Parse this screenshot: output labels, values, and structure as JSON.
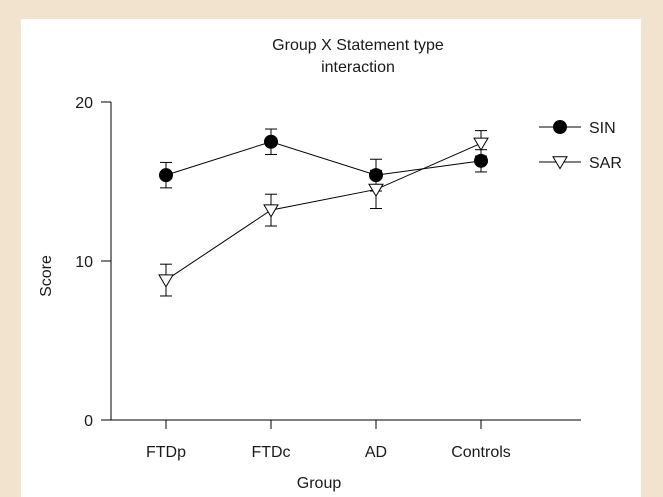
{
  "chart_data": {
    "type": "line",
    "title": "Group X  Statement type",
    "subtitle": "interaction",
    "xlabel": "Group",
    "ylabel": "Score",
    "categories": [
      "FTDp",
      "FTDc",
      "AD",
      "Controls"
    ],
    "ylim": [
      0,
      20
    ],
    "yticks": [
      0,
      10,
      20
    ],
    "grid": false,
    "legend": "top-right",
    "series": [
      {
        "name": "SIN",
        "marker": "filled-circle",
        "color": "#000000",
        "values": [
          15.4,
          17.5,
          15.4,
          16.3
        ],
        "errors": [
          0.8,
          0.8,
          1.0,
          0.7
        ]
      },
      {
        "name": "SAR",
        "marker": "open-triangle-down",
        "color": "#000000",
        "values": [
          8.8,
          13.2,
          14.5,
          17.4
        ],
        "errors": [
          1.0,
          1.0,
          1.2,
          0.8
        ]
      }
    ]
  }
}
